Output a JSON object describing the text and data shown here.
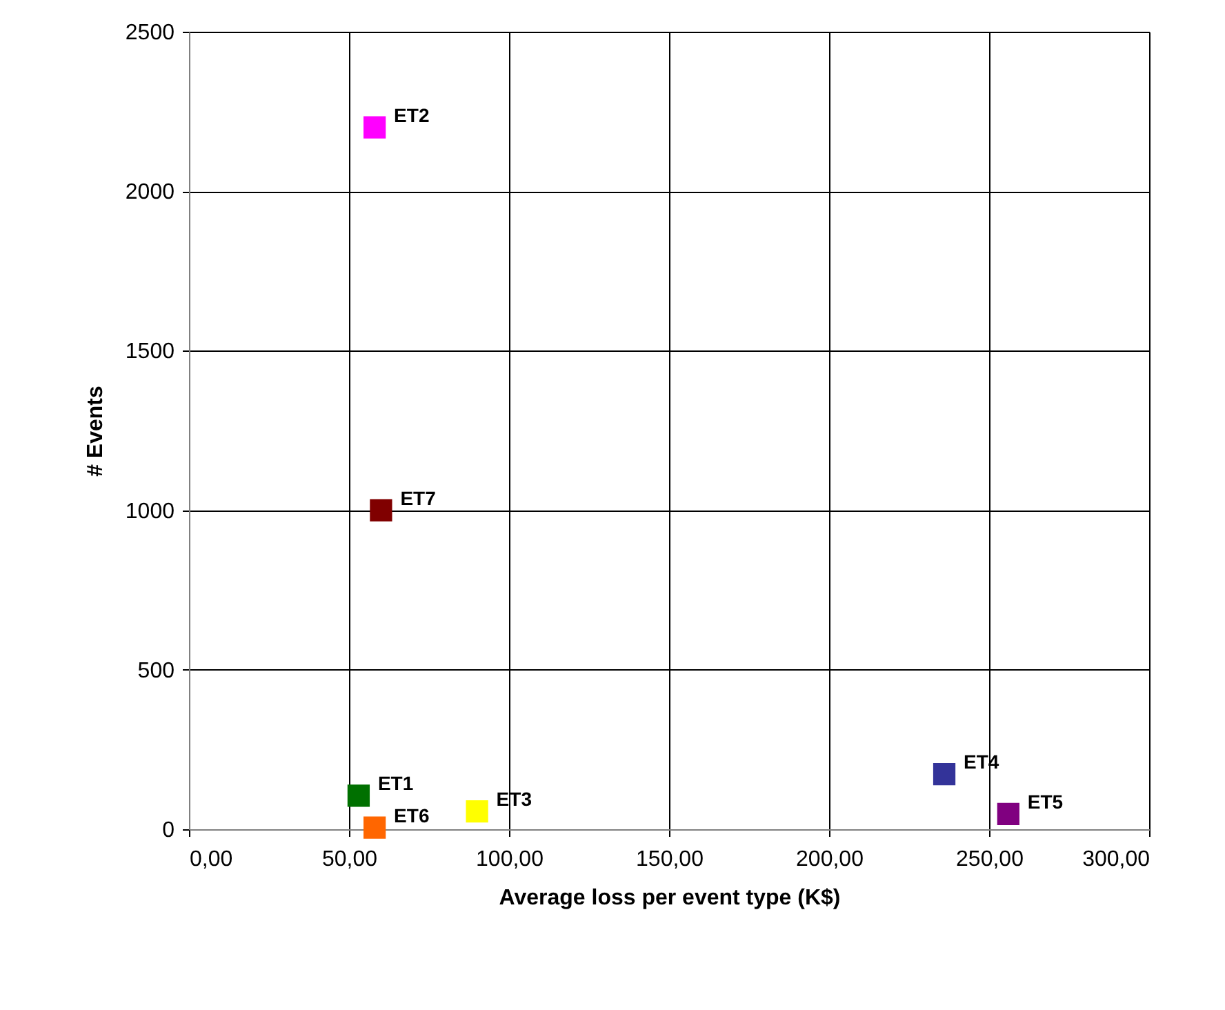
{
  "chart_data": {
    "type": "scatter",
    "xlabel": "Average loss per event type (K$)",
    "ylabel": "# Events",
    "series": [
      {
        "name": "ET1",
        "color": "#007000",
        "x": [
          53
        ],
        "values": [
          105
        ]
      },
      {
        "name": "ET2",
        "color": "#ff00ff",
        "x": [
          58
        ],
        "values": [
          2200
        ]
      },
      {
        "name": "ET3",
        "color": "#ffff00",
        "x": [
          90
        ],
        "values": [
          56
        ]
      },
      {
        "name": "ET4",
        "color": "#333399",
        "x": [
          236
        ],
        "values": [
          173
        ]
      },
      {
        "name": "ET5",
        "color": "#800080",
        "x": [
          256
        ],
        "values": [
          48
        ]
      },
      {
        "name": "ET6",
        "color": "#ff6600",
        "x": [
          58
        ],
        "values": [
          5
        ]
      },
      {
        "name": "ET7",
        "color": "#800000",
        "x": [
          60
        ],
        "values": [
          1000
        ]
      }
    ],
    "xlim": [
      0,
      300
    ],
    "ylim": [
      0,
      2500
    ],
    "xticks": [
      {
        "value": 0,
        "label": "0,00"
      },
      {
        "value": 50,
        "label": "50,00"
      },
      {
        "value": 100,
        "label": "100,00"
      },
      {
        "value": 150,
        "label": "150,00"
      },
      {
        "value": 200,
        "label": "200,00"
      },
      {
        "value": 250,
        "label": "250,00"
      },
      {
        "value": 300,
        "label": "300,00"
      }
    ],
    "yticks": [
      0,
      500,
      1000,
      1500,
      2000,
      2500
    ],
    "grid": true,
    "marker": "square"
  }
}
